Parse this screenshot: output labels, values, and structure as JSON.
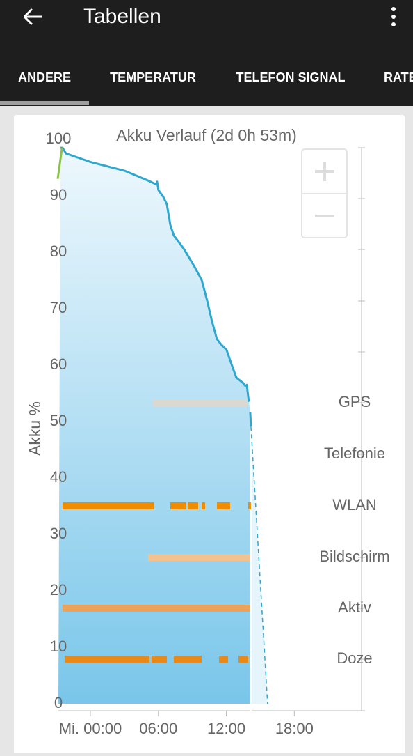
{
  "app_bar": {
    "title": "Tabellen"
  },
  "tabs": [
    "ANDERE",
    "TEMPERATUR",
    "TELEFON SIGNAL",
    "RATE"
  ],
  "chart_data": {
    "type": "line",
    "title": "Akku Verlauf (2d 0h 53m)",
    "y_label": "Akku %",
    "xlim": [
      -2.82,
      23.93
    ],
    "ylim": [
      0,
      100
    ],
    "yticks": [
      0,
      10,
      20,
      30,
      40,
      50,
      60,
      70,
      80,
      90,
      100
    ],
    "xticks": [
      {
        "value": 0,
        "label": "Mi. 00:00"
      },
      {
        "value": 6,
        "label": "06:00"
      },
      {
        "value": 12,
        "label": "12:00"
      },
      {
        "value": 18,
        "label": "18:00"
      }
    ],
    "series": [
      {
        "color": "#2fa8d0",
        "x": [
          -2.64,
          -2.45,
          -2.15,
          0,
          3.07,
          5.21,
          5.83,
          5.89,
          6.01,
          6.44,
          6.75,
          7.06,
          7.36,
          8.28,
          9.2,
          9.82,
          10.31,
          10.74,
          11.17,
          11.53,
          12.02,
          12.45,
          12.88,
          13.5,
          13.68,
          13.8,
          13.99,
          null,
          14.11,
          14.17
        ],
        "values": [
          98.5,
          98.5,
          97.5,
          96.0,
          94.4,
          92.6,
          92.0,
          92.5,
          91.0,
          89.8,
          88.5,
          84.8,
          83.0,
          80.5,
          77.4,
          75.1,
          71.4,
          67.7,
          64.6,
          63.7,
          62.7,
          60.2,
          57.8,
          56.8,
          56.3,
          56.5,
          53.5,
          null,
          51.6,
          49.1
        ]
      },
      {
        "color": "#2fa8d0",
        "dashed": true,
        "x": [
          14.17,
          15.64
        ],
        "values": [
          49.1,
          0
        ]
      },
      {
        "color": "#8bc34a",
        "x": [
          -2.88,
          -2.5
        ],
        "values": [
          93,
          98.5
        ]
      }
    ],
    "activity": [
      {
        "name": "GPS",
        "color": "#e2d6c8",
        "segments": [
          [
            5.52,
            13.8
          ]
        ]
      },
      {
        "name": "Telefonie",
        "color": "#f08c00",
        "segments": []
      },
      {
        "name": "WLAN",
        "color": "#f08c00",
        "segments": [
          [
            -2.45,
            5.64
          ],
          [
            7.06,
            8.47
          ],
          [
            8.59,
            9.51
          ],
          [
            9.82,
            10.12
          ],
          [
            11.17,
            12.33
          ],
          [
            13.93,
            14.17
          ]
        ]
      },
      {
        "name": "Bildschirm",
        "color": "#f2c291",
        "segments": [
          [
            5.09,
            14.11
          ]
        ]
      },
      {
        "name": "Aktiv",
        "color": "#eba25a",
        "segments": [
          [
            -2.45,
            14.11
          ]
        ]
      },
      {
        "name": "Doze",
        "color": "#e88a1a",
        "segments": [
          [
            -2.27,
            5.21
          ],
          [
            5.4,
            6.75
          ],
          [
            7.36,
            9.82
          ],
          [
            11.35,
            12.15
          ],
          [
            13.07,
            13.93
          ]
        ]
      }
    ]
  }
}
